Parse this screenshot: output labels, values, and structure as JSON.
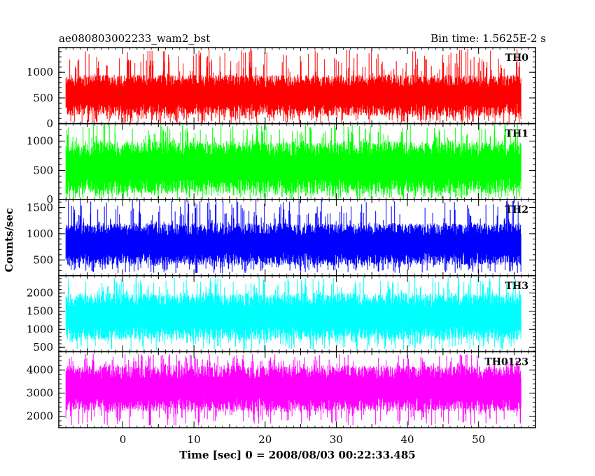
{
  "chart_data": {
    "type": "line",
    "title": "ae080803002233_wam2_bst",
    "subtitle": "Bin time: 1.5625E-2 s",
    "xlabel": "Time [sec] 0 = 2008/08/03 00:22:33.485",
    "ylabel": "Counts/sec",
    "xlim": [
      -9,
      58
    ],
    "x_ticks": [
      0,
      10,
      20,
      30,
      40,
      50
    ],
    "x_range_data": [
      -8,
      56
    ],
    "panels": [
      {
        "name": "TH0",
        "color": "#ff0000",
        "ylim": [
          0,
          1480
        ],
        "ticks": [
          0,
          500,
          1000
        ],
        "typical_range": [
          150,
          950
        ],
        "min": 0,
        "max": 1450
      },
      {
        "name": "TH1",
        "color": "#00ff00",
        "ylim": [
          0,
          1300
        ],
        "ticks": [
          0,
          500,
          1000
        ],
        "typical_range": [
          100,
          1000
        ],
        "min": 0,
        "max": 1300
      },
      {
        "name": "TH2",
        "color": "#0000ff",
        "ylim": [
          200,
          1650
        ],
        "ticks": [
          500,
          1000,
          1500
        ],
        "typical_range": [
          400,
          1200
        ],
        "min": 250,
        "max": 1650
      },
      {
        "name": "TH3",
        "color": "#00ffff",
        "ylim": [
          380,
          2480
        ],
        "ticks": [
          500,
          1000,
          1500,
          2000
        ],
        "typical_range": [
          700,
          2000
        ],
        "min": 400,
        "max": 2450
      },
      {
        "name": "TH0123",
        "color": "#ff00ff",
        "ylim": [
          1500,
          4800
        ],
        "ticks": [
          2000,
          3000,
          4000
        ],
        "typical_range": [
          2200,
          4200
        ],
        "min": 1600,
        "max": 4700
      }
    ]
  }
}
